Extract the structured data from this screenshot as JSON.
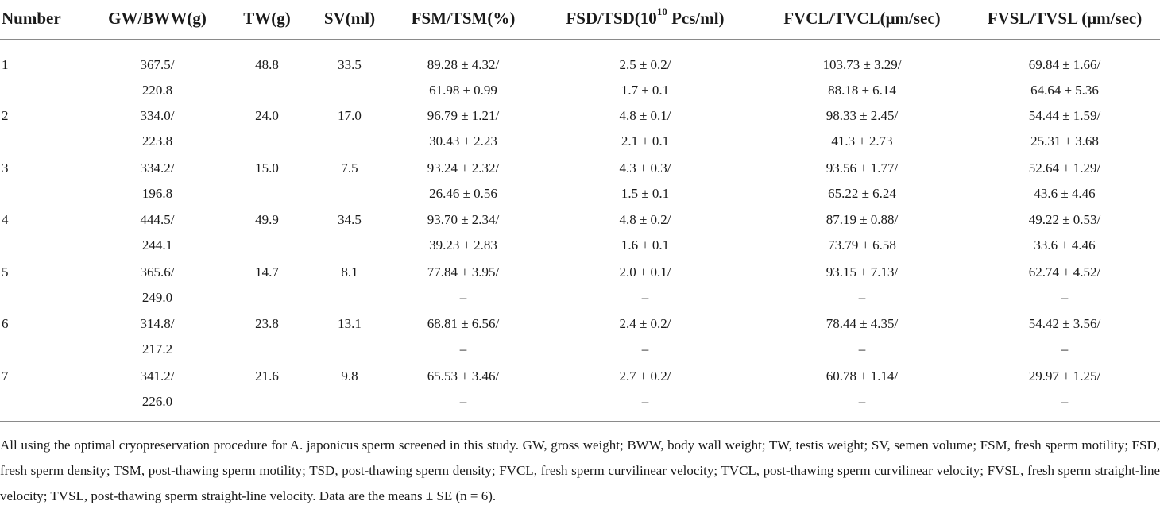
{
  "table": {
    "headers": {
      "number": "Number",
      "gw_bww": "GW/BWW(g)",
      "tw": "TW(g)",
      "sv": "SV(ml)",
      "fsm_tsm": "FSM/TSM(%)",
      "fsd_tsd_pre": "FSD/TSD(10",
      "fsd_tsd_sup": "10",
      "fsd_tsd_post": " Pcs/ml)",
      "fvcl_tvcl": "FVCL/TVCL(μm/sec)",
      "fvsl_tvsl": "FVSL/TVSL (μm/sec)"
    },
    "rows": [
      {
        "num": "1",
        "gw": "367.5/",
        "bww": "220.8",
        "tw": "48.8",
        "sv": "33.5",
        "fsm": "89.28 ± 4.32/",
        "tsm": "61.98 ± 0.99",
        "fsd": "2.5 ± 0.2/",
        "tsd": "1.7 ± 0.1",
        "fvcl": "103.73 ± 3.29/",
        "tvcl": "88.18 ± 6.14",
        "fvsl": "69.84 ± 1.66/",
        "tvsl": "64.64 ± 5.36"
      },
      {
        "num": "2",
        "gw": "334.0/",
        "bww": "223.8",
        "tw": "24.0",
        "sv": "17.0",
        "fsm": "96.79 ± 1.21/",
        "tsm": "30.43 ± 2.23",
        "fsd": "4.8 ± 0.1/",
        "tsd": "2.1 ± 0.1",
        "fvcl": "98.33 ± 2.45/",
        "tvcl": "41.3 ± 2.73",
        "fvsl": "54.44 ± 1.59/",
        "tvsl": "25.31 ± 3.68"
      },
      {
        "num": "3",
        "gw": "334.2/",
        "bww": "196.8",
        "tw": "15.0",
        "sv": "7.5",
        "fsm": "93.24 ± 2.32/",
        "tsm": "26.46 ± 0.56",
        "fsd": "4.3 ± 0.3/",
        "tsd": "1.5 ± 0.1",
        "fvcl": "93.56 ± 1.77/",
        "tvcl": "65.22 ± 6.24",
        "fvsl": "52.64 ± 1.29/",
        "tvsl": "43.6 ± 4.46"
      },
      {
        "num": "4",
        "gw": "444.5/",
        "bww": "244.1",
        "tw": "49.9",
        "sv": "34.5",
        "fsm": "93.70 ± 2.34/",
        "tsm": "39.23 ± 2.83",
        "fsd": "4.8 ± 0.2/",
        "tsd": "1.6 ± 0.1",
        "fvcl": "87.19 ± 0.88/",
        "tvcl": "73.79 ± 6.58",
        "fvsl": "49.22 ± 0.53/",
        "tvsl": "33.6 ± 4.46"
      },
      {
        "num": "5",
        "gw": "365.6/",
        "bww": "249.0",
        "tw": "14.7",
        "sv": "8.1",
        "fsm": "77.84 ± 3.95/",
        "tsm": "–",
        "fsd": "2.0 ± 0.1/",
        "tsd": "–",
        "fvcl": "93.15 ± 7.13/",
        "tvcl": "–",
        "fvsl": "62.74 ± 4.52/",
        "tvsl": "–"
      },
      {
        "num": "6",
        "gw": "314.8/",
        "bww": "217.2",
        "tw": "23.8",
        "sv": "13.1",
        "fsm": "68.81 ± 6.56/",
        "tsm": "–",
        "fsd": "2.4 ± 0.2/",
        "tsd": "–",
        "fvcl": "78.44 ± 4.35/",
        "tvcl": "–",
        "fvsl": "54.42 ± 3.56/",
        "tvsl": "–"
      },
      {
        "num": "7",
        "gw": "341.2/",
        "bww": "226.0",
        "tw": "21.6",
        "sv": "9.8",
        "fsm": "65.53 ± 3.46/",
        "tsm": "–",
        "fsd": "2.7 ± 0.2/",
        "tsd": "–",
        "fvcl": "60.78 ± 1.14/",
        "tvcl": "–",
        "fvsl": "29.97 ± 1.25/",
        "tvsl": "–"
      }
    ]
  },
  "footnote": "All using the optimal cryopreservation procedure for A. japonicus sperm screened in this study. GW, gross weight; BWW, body wall weight; TW, testis weight; SV, semen volume; FSM, fresh sperm motility; FSD, fresh sperm density; TSM, post-thawing sperm motility; TSD, post-thawing sperm density; FVCL, fresh sperm curvilinear velocity; TVCL, post-thawing sperm curvilinear velocity; FVSL, fresh sperm straight-line velocity; TVSL, post-thawing sperm straight-line velocity. Data are the means ± SE (n = 6)."
}
